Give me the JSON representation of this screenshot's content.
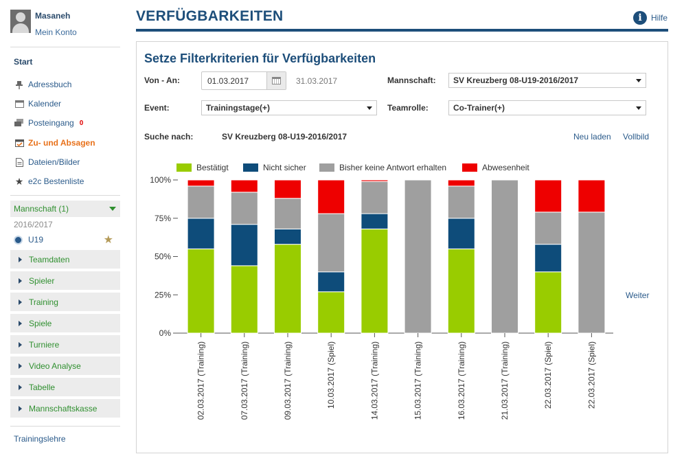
{
  "user": {
    "name": "Masaneh",
    "account_link": "Mein Konto"
  },
  "sidebar": {
    "start_title": "Start",
    "items": [
      {
        "label": "Adressbuch",
        "icon": "pin-icon"
      },
      {
        "label": "Kalender",
        "icon": "calendar-icon"
      },
      {
        "label": "Posteingang",
        "icon": "inbox-icon",
        "badge": "0"
      },
      {
        "label": "Zu- und Absagen",
        "icon": "checklist-icon",
        "active": true
      },
      {
        "label": "Dateien/Bilder",
        "icon": "file-icon"
      },
      {
        "label": "e2c Bestenliste",
        "icon": "star-icon"
      }
    ],
    "team_header": "Mannschaft (1)",
    "season": "2016/2017",
    "team_name": "U19",
    "team_menu": [
      "Teamdaten",
      "Spieler",
      "Training",
      "Spiele",
      "Turniere",
      "Video Analyse",
      "Tabelle",
      "Mannschaftskasse"
    ],
    "training_link": "Trainingslehre"
  },
  "header": {
    "title": "VERFÜGBARKEITEN",
    "help_label": "Hilfe"
  },
  "filter": {
    "title": "Setze Filterkriterien für Verfügbarkeiten",
    "range_label": "Von - An:",
    "date_from": "01.03.2017",
    "date_to": "31.03.2017",
    "team_label": "Mannschaft:",
    "team_value": "SV Kreuzberg 08-U19-2016/2017",
    "event_label": "Event:",
    "event_value": "Trainingstage(+)",
    "role_label": "Teamrolle:",
    "role_value": "Co-Trainer(+)",
    "search_label": "Suche nach:",
    "search_value": "SV Kreuzberg 08-U19-2016/2017",
    "reload_link": "Neu laden",
    "fullscreen_link": "Vollbild",
    "next_link": "Weiter"
  },
  "colors": {
    "confirmed": "#99cc00",
    "unsure": "#0e4c7a",
    "no_answer": "#9f9f9f",
    "absent": "#ee0000"
  },
  "chart_data": {
    "type": "bar",
    "stacked": true,
    "ylim": [
      0,
      100
    ],
    "yticks": [
      "0%",
      "25%",
      "50%",
      "75%",
      "100%"
    ],
    "legend": [
      "Bestätigt",
      "Nicht sicher",
      "Bisher keine Antwort erhalten",
      "Abwesenheit"
    ],
    "categories": [
      "02.03.2017 (Training)",
      "07.03.2017 (Training)",
      "09.03.2017 (Training)",
      "10.03.2017 (Spiel)",
      "14.03.2017 (Training)",
      "15.03.2017 (Training)",
      "16.03.2017 (Training)",
      "21.03.2017 (Training)",
      "22.03.2017 (Spiel)",
      "22.03.2017 (Spiel)"
    ],
    "series": [
      {
        "name": "Bestätigt",
        "values": [
          55,
          44,
          58,
          27,
          68,
          0,
          55,
          0,
          40,
          0
        ]
      },
      {
        "name": "Nicht sicher",
        "values": [
          20,
          27,
          10,
          13,
          10,
          0,
          20,
          0,
          18,
          0
        ]
      },
      {
        "name": "Bisher keine Antwort erhalten",
        "values": [
          21,
          21,
          20,
          38,
          21,
          100,
          21,
          100,
          21,
          79
        ]
      },
      {
        "name": "Abwesenheit",
        "values": [
          4,
          8,
          12,
          22,
          1,
          0,
          4,
          0,
          21,
          21
        ]
      }
    ]
  }
}
